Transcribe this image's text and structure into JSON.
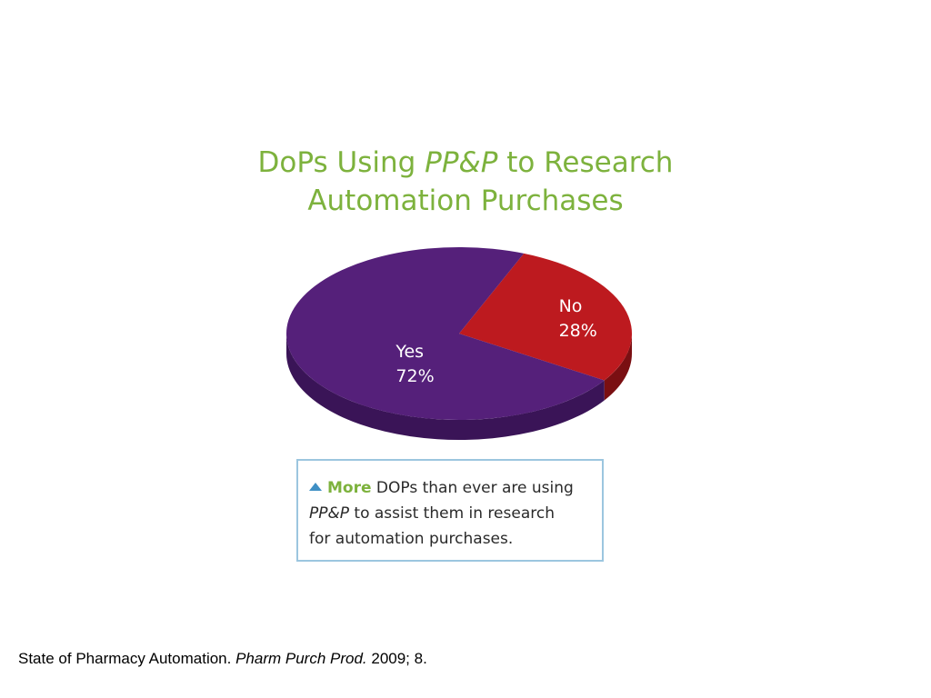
{
  "title": {
    "part1": "DoPs Using ",
    "italic": "PP&P",
    "part2": " to Research",
    "line2": "Automation Purchases"
  },
  "chart_data": {
    "type": "pie",
    "title": "DoPs Using PP&P to Research Automation Purchases",
    "slices": [
      {
        "label": "No",
        "value": 28,
        "value_label": "28%",
        "color": "#bd1a1f",
        "side_color": "#7a0f12"
      },
      {
        "label": "Yes",
        "value": 72,
        "value_label": "72%",
        "color": "#55207a",
        "side_color": "#3a1457"
      }
    ],
    "legend": "none"
  },
  "callout": {
    "icon": "triangle-up-icon",
    "highlight": "More",
    "text1": " DOPs than ever are using",
    "italic": "PP&P",
    "text2": " to assist them in research",
    "text3": "for automation purchases."
  },
  "source": {
    "part1": "State of Pharmacy Automation. ",
    "italic": "Pharm Purch Prod.",
    "part2": " 2009; 8."
  }
}
